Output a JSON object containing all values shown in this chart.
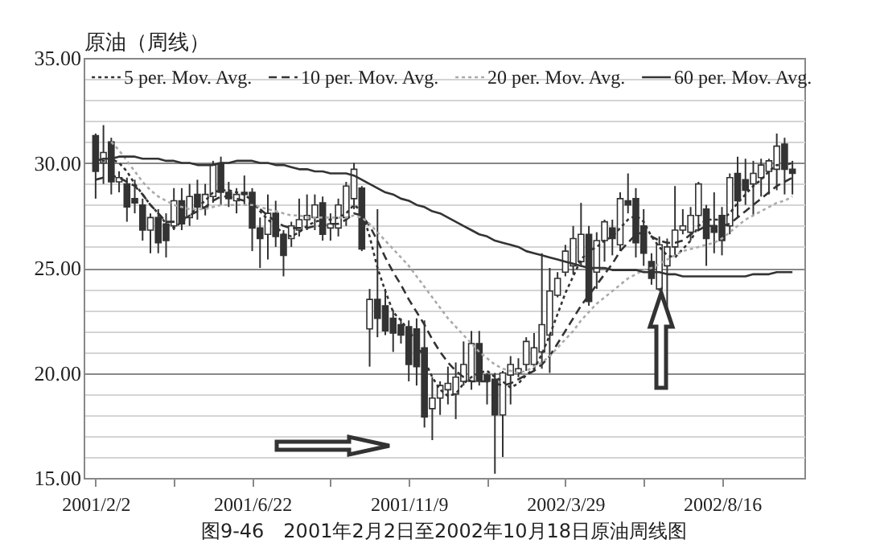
{
  "chart_data": {
    "type": "candlestick",
    "title": "图9-46　2001年2月2日至2002年10月18日原油周线图",
    "ylabel": "原油（周线）",
    "categories": [
      "2001/2/2",
      null,
      null,
      null,
      null,
      null,
      null,
      null,
      null,
      null,
      null,
      null,
      null,
      null,
      null,
      null,
      null,
      null,
      null,
      null,
      "2001/6/22",
      null,
      null,
      null,
      null,
      null,
      null,
      null,
      null,
      null,
      null,
      null,
      null,
      null,
      null,
      null,
      null,
      null,
      null,
      null,
      "2001/11/9",
      null,
      null,
      null,
      null,
      null,
      null,
      null,
      null,
      null,
      null,
      null,
      null,
      null,
      null,
      null,
      null,
      null,
      null,
      null,
      "2002/3/29",
      null,
      null,
      null,
      null,
      null,
      null,
      null,
      null,
      null,
      null,
      null,
      null,
      null,
      null,
      null,
      null,
      null,
      null,
      null,
      "2002/8/16",
      null,
      null,
      null,
      null,
      null,
      null,
      null,
      null,
      null
    ],
    "ohlc": [
      [
        31.3,
        31.4,
        28.3,
        29.6
      ],
      [
        30.0,
        31.8,
        29.0,
        30.5
      ],
      [
        31.0,
        31.2,
        28.5,
        29.1
      ],
      [
        29.1,
        29.6,
        28.6,
        29.3
      ],
      [
        29.0,
        29.3,
        27.2,
        27.9
      ],
      [
        28.3,
        29.2,
        27.6,
        28.1
      ],
      [
        28.0,
        28.3,
        26.3,
        26.8
      ],
      [
        26.8,
        27.6,
        25.7,
        27.4
      ],
      [
        27.4,
        27.8,
        25.7,
        26.2
      ],
      [
        27.1,
        27.6,
        25.5,
        26.3
      ],
      [
        27.0,
        28.8,
        26.8,
        28.2
      ],
      [
        28.2,
        28.8,
        26.8,
        27.1
      ],
      [
        27.4,
        29.0,
        27.0,
        28.4
      ],
      [
        28.5,
        29.2,
        27.3,
        27.9
      ],
      [
        27.9,
        29.0,
        27.5,
        28.5
      ],
      [
        28.4,
        30.1,
        28.1,
        29.9
      ],
      [
        30.0,
        30.3,
        28.0,
        28.6
      ],
      [
        28.6,
        29.1,
        27.9,
        28.3
      ],
      [
        28.2,
        28.8,
        27.6,
        28.5
      ],
      [
        28.6,
        29.4,
        28.0,
        28.5
      ],
      [
        28.6,
        28.8,
        25.8,
        26.9
      ],
      [
        26.9,
        27.4,
        25.0,
        26.4
      ],
      [
        26.6,
        28.5,
        25.4,
        27.6
      ],
      [
        27.6,
        28.2,
        26.0,
        26.5
      ],
      [
        26.6,
        26.8,
        24.6,
        25.6
      ],
      [
        26.4,
        27.2,
        26.0,
        27.0
      ],
      [
        26.8,
        28.3,
        26.5,
        27.3
      ],
      [
        27.3,
        28.5,
        26.8,
        27.5
      ],
      [
        27.4,
        28.5,
        26.8,
        28.0
      ],
      [
        28.1,
        28.4,
        26.3,
        26.6
      ],
      [
        26.9,
        27.6,
        26.3,
        27.1
      ],
      [
        26.9,
        28.3,
        26.5,
        28.0
      ],
      [
        27.4,
        29.1,
        27.0,
        28.9
      ],
      [
        28.3,
        30.0,
        27.8,
        29.7
      ],
      [
        28.8,
        28.9,
        25.8,
        25.9
      ],
      [
        22.1,
        24.0,
        20.3,
        23.5
      ],
      [
        23.5,
        27.8,
        21.7,
        22.6
      ],
      [
        23.2,
        24.0,
        21.8,
        22.0
      ],
      [
        22.6,
        23.0,
        21.0,
        21.9
      ],
      [
        22.3,
        22.6,
        21.4,
        21.8
      ],
      [
        22.2,
        22.5,
        19.6,
        20.4
      ],
      [
        22.1,
        22.6,
        19.4,
        20.3
      ],
      [
        21.2,
        22.5,
        17.4,
        17.9
      ],
      [
        18.3,
        19.8,
        16.8,
        18.8
      ],
      [
        18.8,
        19.6,
        18.0,
        19.4
      ],
      [
        19.2,
        20.3,
        18.5,
        19.5
      ],
      [
        19.0,
        20.5,
        17.8,
        19.8
      ],
      [
        19.6,
        21.5,
        19.4,
        20.4
      ],
      [
        19.6,
        22.0,
        19.2,
        21.4
      ],
      [
        21.4,
        22.0,
        19.4,
        19.6
      ],
      [
        19.9,
        20.0,
        18.5,
        19.6
      ],
      [
        19.7,
        20.0,
        15.2,
        18.0
      ],
      [
        18.0,
        20.1,
        16.0,
        20.0
      ],
      [
        19.9,
        20.8,
        18.5,
        20.4
      ],
      [
        20.0,
        20.7,
        19.8,
        20.2
      ],
      [
        20.4,
        21.7,
        20.1,
        21.5
      ],
      [
        20.4,
        21.9,
        20.1,
        21.2
      ],
      [
        21.0,
        25.7,
        20.2,
        22.3
      ],
      [
        21.8,
        25.0,
        20.0,
        23.9
      ],
      [
        23.7,
        24.8,
        23.6,
        24.5
      ],
      [
        24.8,
        26.1,
        24.6,
        25.8
      ],
      [
        25.1,
        27.0,
        24.7,
        26.4
      ],
      [
        25.3,
        28.1,
        25.1,
        26.6
      ],
      [
        26.6,
        27.0,
        23.2,
        23.4
      ],
      [
        24.8,
        26.7,
        24.0,
        26.3
      ],
      [
        26.3,
        27.3,
        25.3,
        27.2
      ],
      [
        26.9,
        27.3,
        25.6,
        26.4
      ],
      [
        26.1,
        28.6,
        25.8,
        28.3
      ],
      [
        28.2,
        29.5,
        27.6,
        28.0
      ],
      [
        28.3,
        28.8,
        25.5,
        26.2
      ],
      [
        27.0,
        27.8,
        25.1,
        25.7
      ],
      [
        25.3,
        25.7,
        24.2,
        24.5
      ],
      [
        24.0,
        26.5,
        23.9,
        26.1
      ],
      [
        25.1,
        26.4,
        23.1,
        26.0
      ],
      [
        26.0,
        28.9,
        25.6,
        26.8
      ],
      [
        26.8,
        27.8,
        26.6,
        27.0
      ],
      [
        26.7,
        27.9,
        26.3,
        27.5
      ],
      [
        27.5,
        29.1,
        26.8,
        29.0
      ],
      [
        27.8,
        28.0,
        25.1,
        26.4
      ],
      [
        27.0,
        28.6,
        25.7,
        26.7
      ],
      [
        27.5,
        27.9,
        25.6,
        26.3
      ],
      [
        27.0,
        29.5,
        26.6,
        29.3
      ],
      [
        29.5,
        30.3,
        27.4,
        28.2
      ],
      [
        29.2,
        30.2,
        28.0,
        28.7
      ],
      [
        29.0,
        30.1,
        27.5,
        29.5
      ],
      [
        29.3,
        30.2,
        28.4,
        29.9
      ],
      [
        29.6,
        30.2,
        28.5,
        30.1
      ],
      [
        29.7,
        31.4,
        28.7,
        30.8
      ],
      [
        30.9,
        31.2,
        28.5,
        29.7
      ],
      [
        29.7,
        30.1,
        28.5,
        29.5
      ]
    ],
    "series": [
      {
        "name": "5 per. Mov. Avg.",
        "type": "line",
        "line_style": "dotted",
        "color": "#333333",
        "values": [
          30.0,
          30.1,
          30.2,
          30.0,
          29.6,
          29.0,
          28.5,
          28.0,
          27.6,
          27.1,
          26.9,
          27.2,
          27.5,
          27.9,
          28.2,
          28.6,
          28.7,
          28.7,
          28.6,
          28.5,
          28.2,
          27.7,
          27.3,
          27.0,
          26.6,
          26.5,
          26.7,
          27.0,
          27.2,
          27.3,
          27.3,
          27.4,
          27.6,
          28.0,
          27.7,
          26.5,
          25.0,
          23.9,
          22.9,
          22.5,
          22.0,
          21.5,
          20.6,
          19.8,
          19.2,
          18.9,
          19.0,
          19.5,
          19.8,
          20.0,
          20.1,
          19.8,
          19.6,
          19.3,
          19.5,
          19.9,
          20.2,
          20.9,
          21.8,
          22.8,
          23.8,
          24.6,
          25.4,
          25.8,
          26.0,
          26.3,
          26.5,
          26.9,
          27.3,
          27.5,
          27.2,
          26.5,
          26.0,
          25.6,
          25.5,
          25.9,
          26.3,
          27.0,
          27.3,
          27.3,
          27.3,
          27.6,
          28.1,
          28.5,
          28.9,
          29.2,
          29.6,
          29.9,
          29.9,
          30.0
        ]
      },
      {
        "name": "10 per. Mov. Avg.",
        "type": "line",
        "line_style": "dashed",
        "color": "#333333",
        "values": [
          29.2,
          29.3,
          29.4,
          29.3,
          29.1,
          28.9,
          28.5,
          28.0,
          27.6,
          27.2,
          27.2,
          27.3,
          27.5,
          27.7,
          27.9,
          28.2,
          28.4,
          28.4,
          28.3,
          28.2,
          28.0,
          27.8,
          27.5,
          27.2,
          27.0,
          26.9,
          26.9,
          26.9,
          27.0,
          27.0,
          27.1,
          27.1,
          27.3,
          27.6,
          27.5,
          27.0,
          26.3,
          25.5,
          24.8,
          24.2,
          23.5,
          22.9,
          22.3,
          21.6,
          21.0,
          20.5,
          20.1,
          19.8,
          19.6,
          19.6,
          19.6,
          19.5,
          19.4,
          19.5,
          19.7,
          19.9,
          20.1,
          20.4,
          20.8,
          21.4,
          22.0,
          22.6,
          23.2,
          23.7,
          24.2,
          24.7,
          25.2,
          25.8,
          26.2,
          26.6,
          26.7,
          26.5,
          26.3,
          26.2,
          26.2,
          26.3,
          26.6,
          26.8,
          27.0,
          27.0,
          27.0,
          27.1,
          27.4,
          27.7,
          28.0,
          28.3,
          28.6,
          28.9,
          29.1,
          29.3
        ]
      },
      {
        "name": "20 per. Mov. Avg.",
        "type": "line",
        "line_style": "dotted",
        "color": "#aaaaaa",
        "values": [
          null,
          null,
          31.0,
          30.6,
          30.1,
          29.6,
          29.1,
          28.7,
          28.4,
          28.2,
          28.0,
          27.9,
          27.8,
          27.8,
          27.8,
          27.9,
          28.0,
          28.0,
          28.0,
          28.0,
          28.0,
          27.9,
          27.8,
          27.7,
          27.6,
          27.5,
          27.5,
          27.4,
          27.4,
          27.4,
          27.4,
          27.4,
          27.4,
          27.5,
          27.4,
          27.1,
          26.7,
          26.3,
          25.9,
          25.5,
          25.1,
          24.6,
          24.1,
          23.6,
          23.1,
          22.6,
          22.2,
          21.8,
          21.4,
          21.0,
          20.7,
          20.4,
          20.2,
          20.1,
          20.0,
          20.1,
          20.3,
          20.5,
          20.8,
          21.2,
          21.6,
          22.0,
          22.5,
          22.9,
          23.3,
          23.6,
          23.9,
          24.2,
          24.5,
          24.7,
          24.9,
          25.0,
          25.2,
          25.4,
          25.6,
          25.8,
          25.9,
          26.0,
          26.1,
          26.2,
          26.4,
          26.7,
          27.0,
          27.3,
          27.5,
          27.7,
          27.9,
          28.1,
          28.2,
          28.4
        ]
      },
      {
        "name": "60 per. Mov. Avg.",
        "type": "line",
        "line_style": "solid",
        "color": "#333333",
        "values": [
          30.1,
          30.2,
          30.2,
          30.3,
          30.3,
          30.3,
          30.2,
          30.2,
          30.2,
          30.1,
          30.1,
          30.0,
          30.0,
          29.9,
          29.9,
          29.9,
          30.0,
          30.0,
          30.1,
          30.1,
          30.1,
          30.0,
          30.0,
          29.9,
          29.9,
          29.8,
          29.7,
          29.7,
          29.6,
          29.6,
          29.5,
          29.5,
          29.5,
          29.4,
          29.2,
          29.0,
          28.8,
          28.6,
          28.5,
          28.3,
          28.2,
          28.0,
          27.9,
          27.7,
          27.6,
          27.4,
          27.2,
          27.0,
          26.8,
          26.6,
          26.5,
          26.3,
          26.2,
          26.1,
          26.0,
          25.8,
          25.7,
          25.6,
          25.5,
          25.4,
          25.3,
          25.2,
          25.1,
          25.0,
          25.0,
          25.0,
          24.9,
          24.9,
          24.9,
          24.9,
          24.8,
          24.8,
          24.8,
          24.7,
          24.7,
          24.6,
          24.6,
          24.6,
          24.6,
          24.6,
          24.6,
          24.6,
          24.6,
          24.6,
          24.7,
          24.7,
          24.7,
          24.8,
          24.8,
          24.8
        ]
      }
    ],
    "ylim": [
      15,
      35
    ],
    "yticks": [
      {
        "value": 15,
        "label": "15.00"
      },
      {
        "value": 16,
        "label": null
      },
      {
        "value": 17,
        "label": null
      },
      {
        "value": 18,
        "label": null
      },
      {
        "value": 19,
        "label": null
      },
      {
        "value": 20,
        "label": "20.00"
      },
      {
        "value": 21,
        "label": null
      },
      {
        "value": 22,
        "label": null
      },
      {
        "value": 23,
        "label": null
      },
      {
        "value": 24,
        "label": null
      },
      {
        "value": 25,
        "label": "25.00"
      },
      {
        "value": 26,
        "label": null
      },
      {
        "value": 27,
        "label": null
      },
      {
        "value": 28,
        "label": null
      },
      {
        "value": 29,
        "label": null
      },
      {
        "value": 30,
        "label": "30.00"
      },
      {
        "value": 31,
        "label": null
      },
      {
        "value": 32,
        "label": null
      },
      {
        "value": 33,
        "label": null
      },
      {
        "value": 34,
        "label": null
      },
      {
        "value": 35,
        "label": "35.00"
      }
    ],
    "grid": "y",
    "legend": "top"
  }
}
